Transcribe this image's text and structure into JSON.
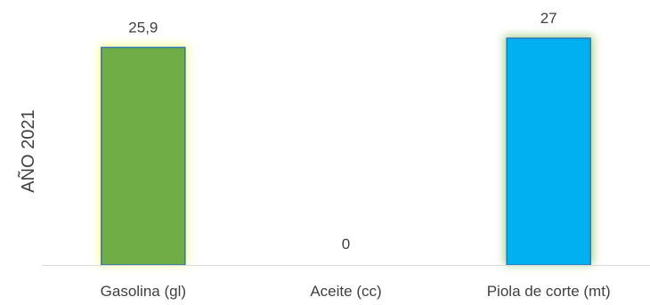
{
  "chart_data": {
    "type": "bar",
    "ylabel": "AÑO 2021",
    "categories": [
      "Gasolina (gl)",
      "Aceite (cc)",
      "Piola de corte (mt)"
    ],
    "values": [
      25.9,
      0,
      27
    ],
    "data_labels": [
      "25,9",
      "0",
      "27"
    ],
    "colors": [
      "#70AD47",
      "#70AD47",
      "#00B0F0"
    ],
    "glow_colors": [
      "#FFFF99",
      "#FFFF99",
      "#A9D18E"
    ],
    "bar_outline_color": "#2E75B6",
    "legend": "none",
    "grid": false
  }
}
